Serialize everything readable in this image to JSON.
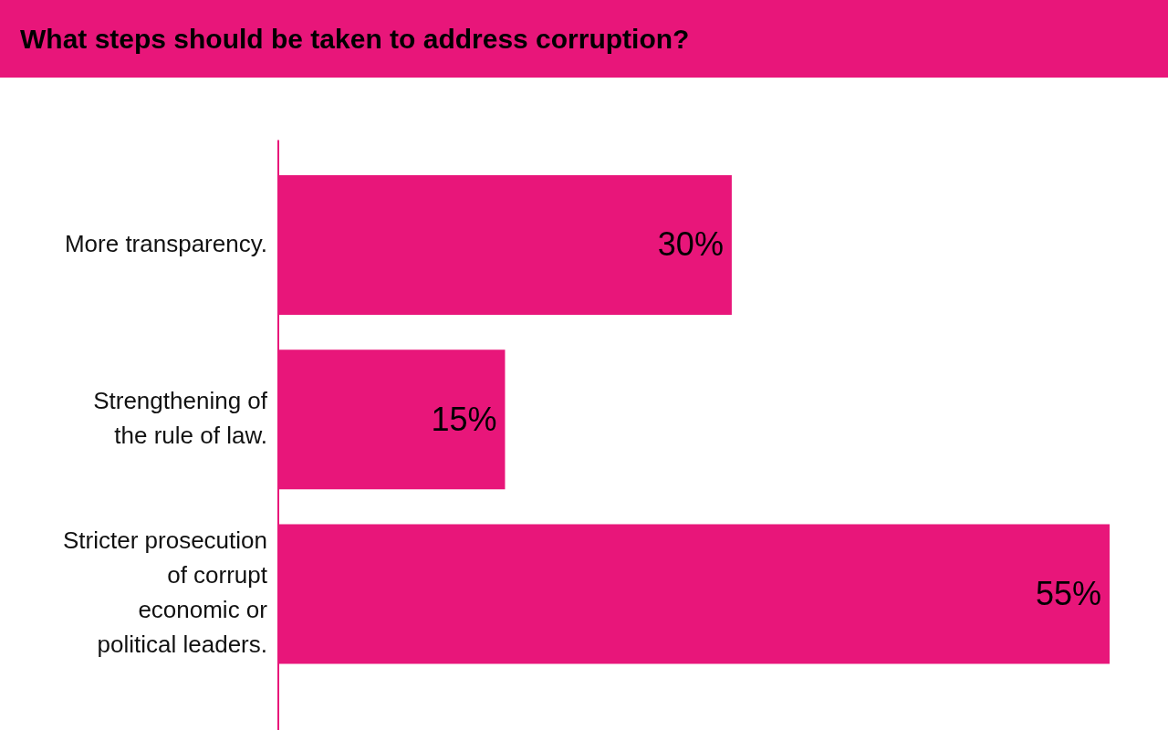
{
  "chart_data": {
    "type": "bar",
    "orientation": "horizontal",
    "title": "What steps should be taken to address corruption?",
    "categories": [
      "More transparency.",
      "Strengthening of the rule of law.",
      "Stricter prosecution of corrupt economic or political leaders."
    ],
    "values": [
      30,
      15,
      55
    ],
    "value_labels": [
      "30%",
      "15%",
      "55%"
    ],
    "color": "#e8167a",
    "xlim": [
      0,
      55
    ],
    "tick_labels": "y"
  }
}
